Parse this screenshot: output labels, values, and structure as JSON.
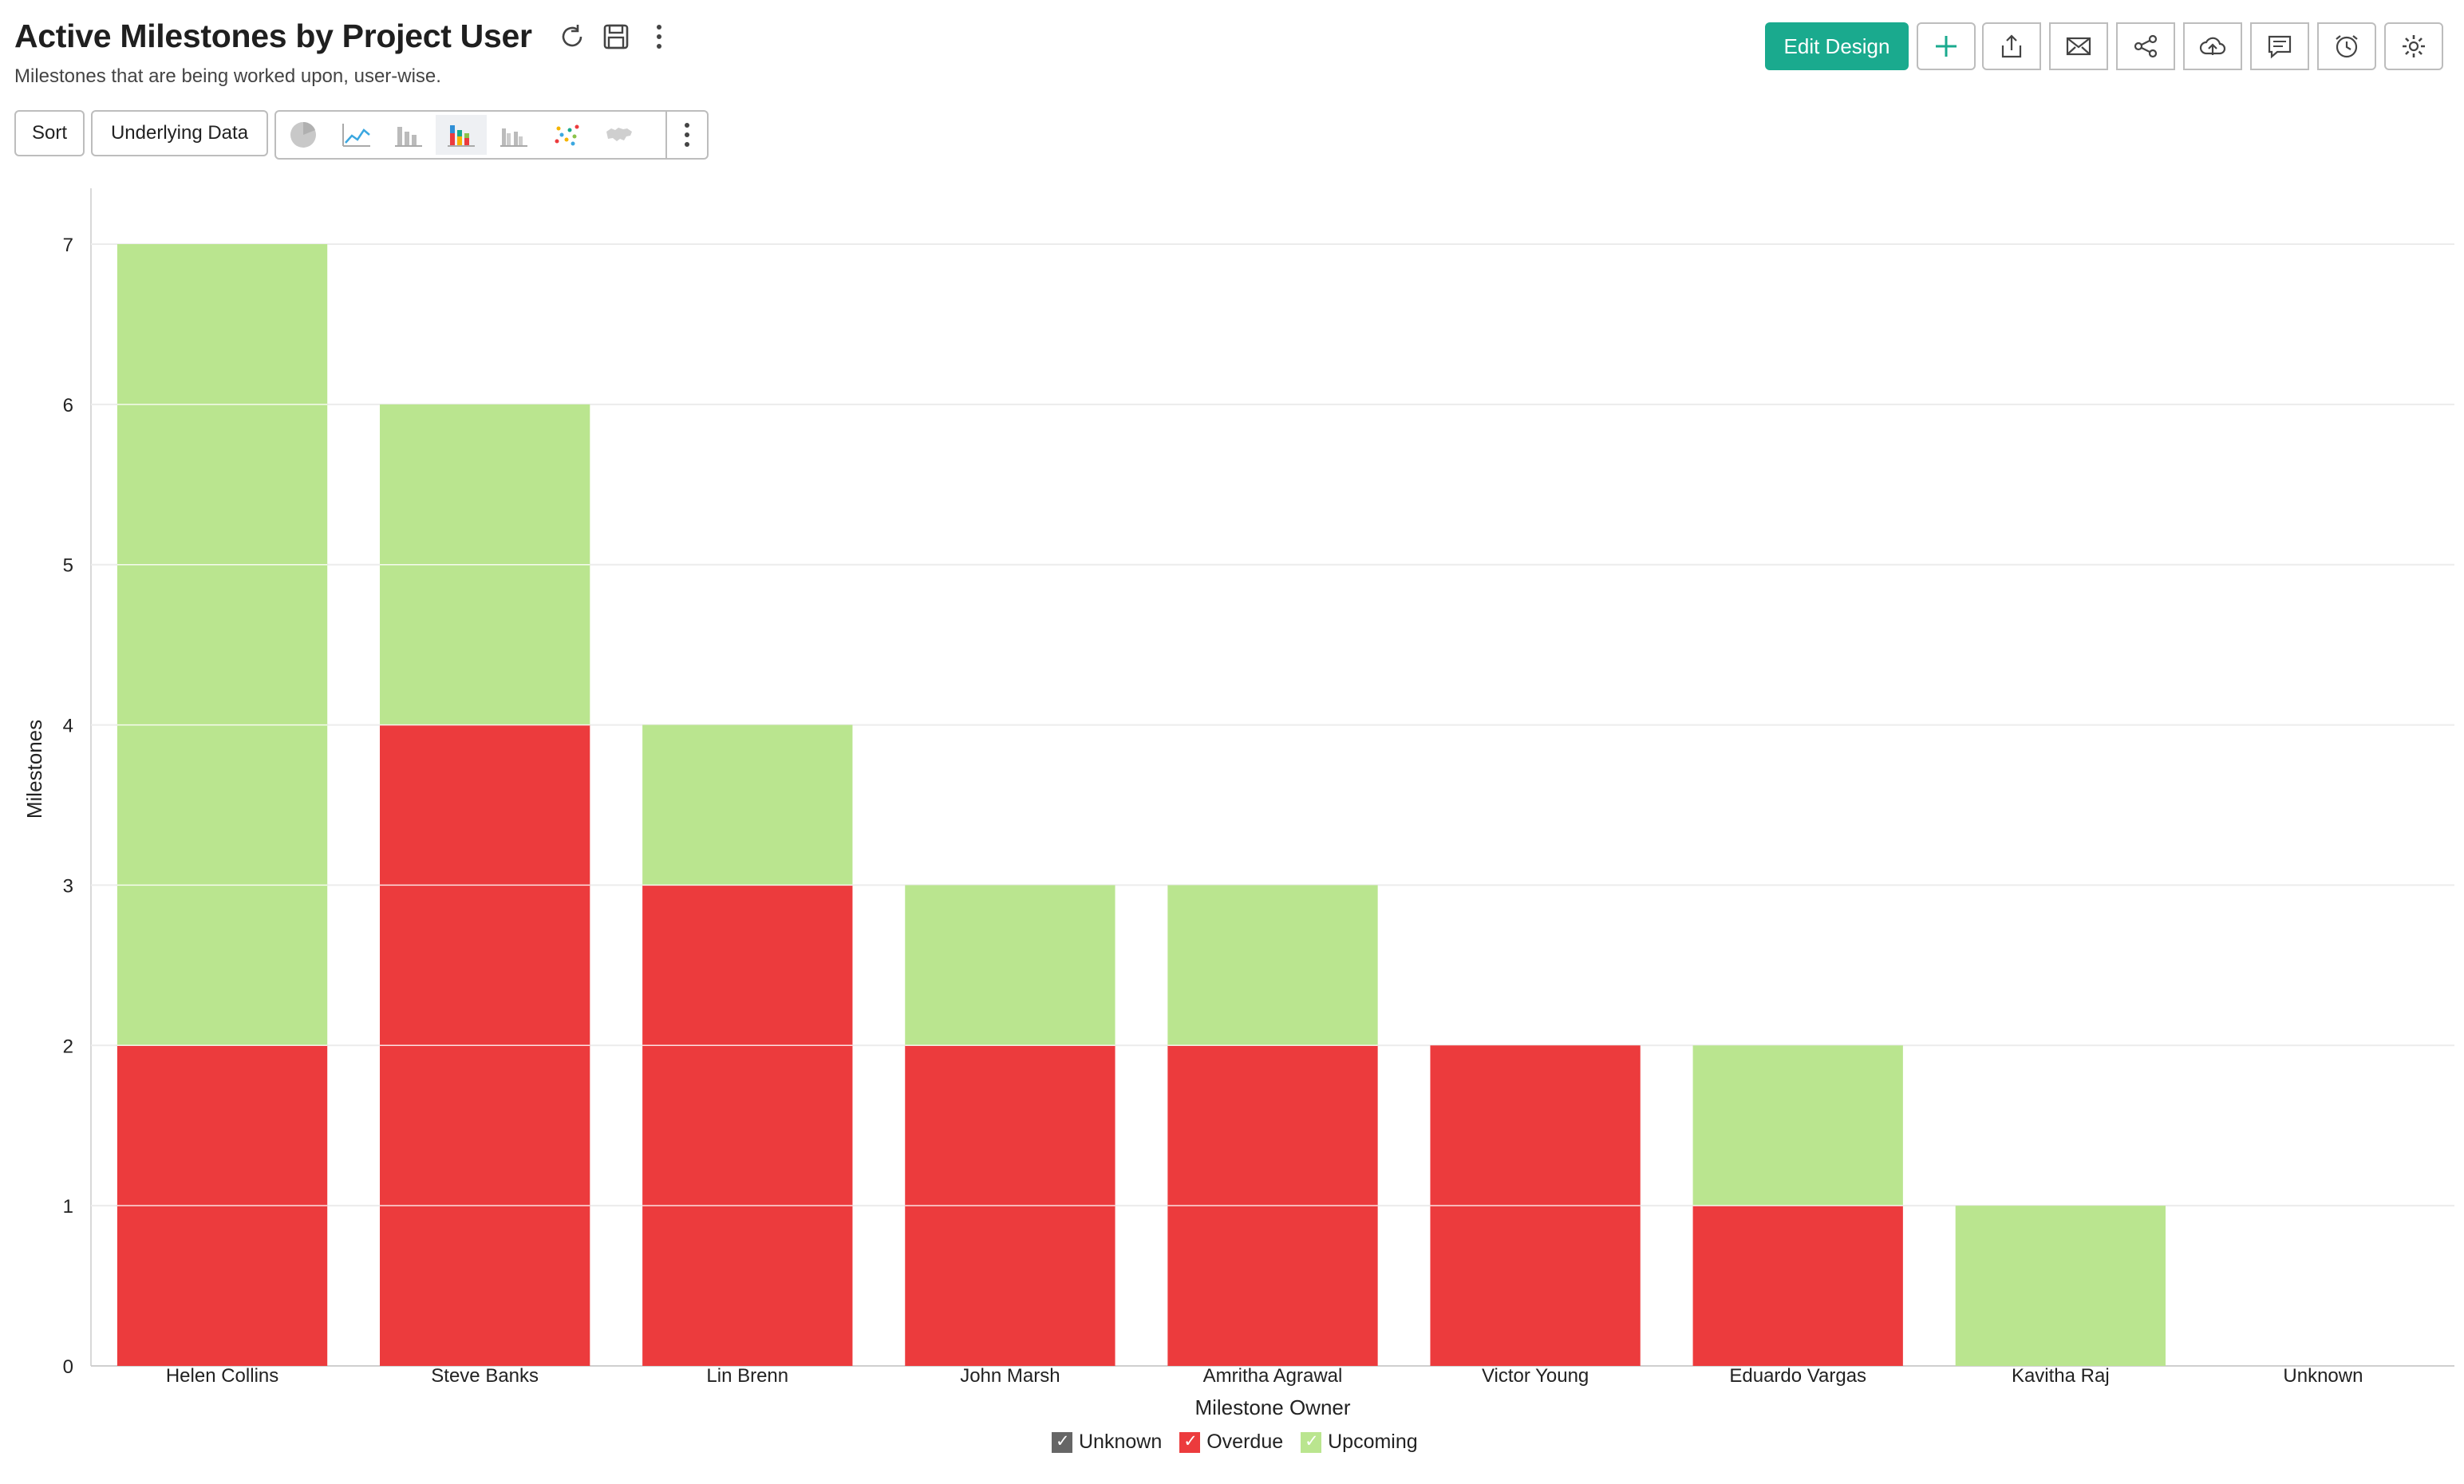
{
  "header": {
    "title": "Active Milestones by Project User",
    "subtitle": "Milestones that are being worked upon, user-wise.",
    "icons": [
      "refresh-icon",
      "save-icon",
      "more-vertical-icon"
    ]
  },
  "toolbar": {
    "sort_label": "Sort",
    "underlying_label": "Underlying Data",
    "chart_types": [
      "pie-chart-icon",
      "line-chart-icon",
      "bar-chart-icon",
      "stacked-bar-chart-icon",
      "grouped-bar-chart-icon",
      "scatter-chart-icon",
      "map-chart-icon"
    ],
    "active_chart_type": "stacked-bar-chart-icon"
  },
  "right_toolbar": {
    "edit_label": "Edit Design",
    "icons": [
      "plus-icon",
      "export-icon",
      "email-icon",
      "share-icon",
      "publish-icon",
      "comment-icon",
      "alarm-icon",
      "settings-icon"
    ]
  },
  "colors": {
    "accent": "#1aaa8e",
    "unknown": "#666666",
    "overdue": "#ec3b3d",
    "upcoming": "#bae58f"
  },
  "chart_data": {
    "type": "bar",
    "stacked": true,
    "title": "",
    "xlabel": "Milestone Owner",
    "ylabel": "Milestones",
    "ylim": [
      0,
      7
    ],
    "yticks": [
      0,
      1,
      2,
      3,
      4,
      5,
      6,
      7
    ],
    "grid": true,
    "legend_position": "bottom",
    "categories": [
      "Helen Collins",
      "Steve Banks",
      "Lin Brenn",
      "John Marsh",
      "Amritha Agrawal",
      "Victor Young",
      "Eduardo Vargas",
      "Kavitha Raj",
      "Unknown"
    ],
    "series": [
      {
        "name": "Unknown",
        "color": "#666666",
        "values": [
          0,
          0,
          0,
          0,
          0,
          0,
          0,
          0,
          0
        ]
      },
      {
        "name": "Overdue",
        "color": "#ec3b3d",
        "values": [
          2,
          4,
          3,
          2,
          2,
          2,
          1,
          0,
          0
        ]
      },
      {
        "name": "Upcoming",
        "color": "#bae58f",
        "values": [
          5,
          2,
          1,
          1,
          1,
          0,
          1,
          1,
          0
        ]
      }
    ]
  }
}
